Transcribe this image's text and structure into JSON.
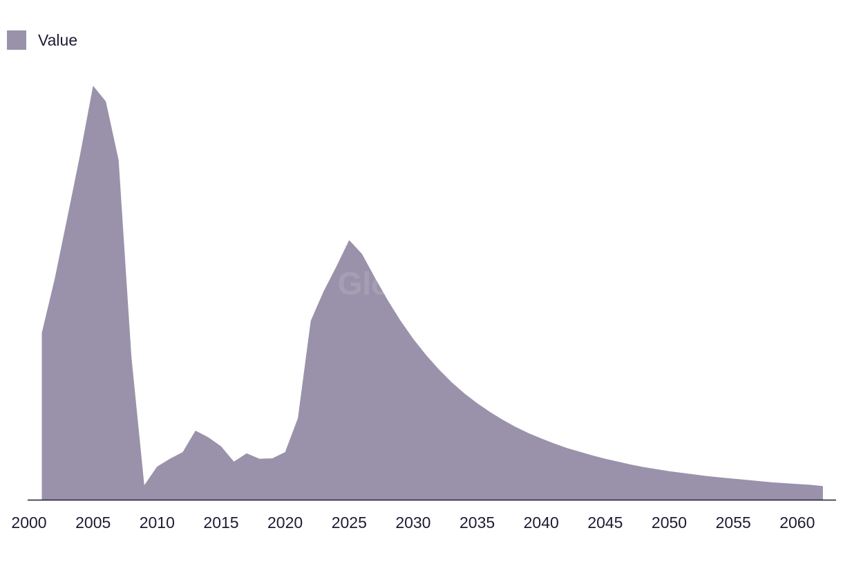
{
  "legend": {
    "label": "Value",
    "color": "#9a92aa"
  },
  "watermark": "GlobalData",
  "chart_data": {
    "type": "area",
    "title": "",
    "xlabel": "",
    "ylabel": "",
    "legend_position": "top-left",
    "grid": false,
    "y_axis_labels": false,
    "xlim": [
      2000,
      2062
    ],
    "ylim": [
      0,
      100
    ],
    "x_ticks": [
      2000,
      2005,
      2010,
      2015,
      2020,
      2025,
      2030,
      2035,
      2040,
      2045,
      2050,
      2055,
      2060
    ],
    "series": [
      {
        "name": "Value",
        "color": "#9a92aa",
        "x": [
          2001,
          2002,
          2003,
          2004,
          2005,
          2006,
          2007,
          2008,
          2009,
          2010,
          2011,
          2012,
          2013,
          2014,
          2015,
          2016,
          2017,
          2018,
          2019,
          2020,
          2021,
          2022,
          2023,
          2024,
          2025,
          2026,
          2027,
          2028,
          2029,
          2030,
          2031,
          2032,
          2033,
          2034,
          2035,
          2036,
          2037,
          2038,
          2039,
          2040,
          2041,
          2042,
          2043,
          2044,
          2045,
          2046,
          2047,
          2048,
          2049,
          2050,
          2051,
          2052,
          2053,
          2054,
          2055,
          2056,
          2057,
          2058,
          2059,
          2060,
          2061,
          2062
        ],
        "values": [
          40.3,
          53.3,
          68.3,
          83.5,
          100.0,
          96.2,
          82.0,
          34.5,
          3.5,
          8.0,
          9.9,
          11.5,
          16.7,
          15.1,
          12.9,
          9.2,
          11.2,
          9.9,
          10.0,
          11.5,
          19.7,
          43.2,
          50.3,
          56.3,
          62.7,
          59.4,
          53.7,
          48.3,
          43.3,
          38.9,
          35.0,
          31.5,
          28.4,
          25.7,
          23.3,
          21.2,
          19.3,
          17.6,
          16.1,
          14.8,
          13.6,
          12.5,
          11.6,
          10.7,
          9.9,
          9.2,
          8.5,
          7.9,
          7.4,
          6.9,
          6.5,
          6.1,
          5.7,
          5.4,
          5.1,
          4.8,
          4.5,
          4.2,
          4.0,
          3.8,
          3.6,
          3.3
        ]
      }
    ]
  }
}
